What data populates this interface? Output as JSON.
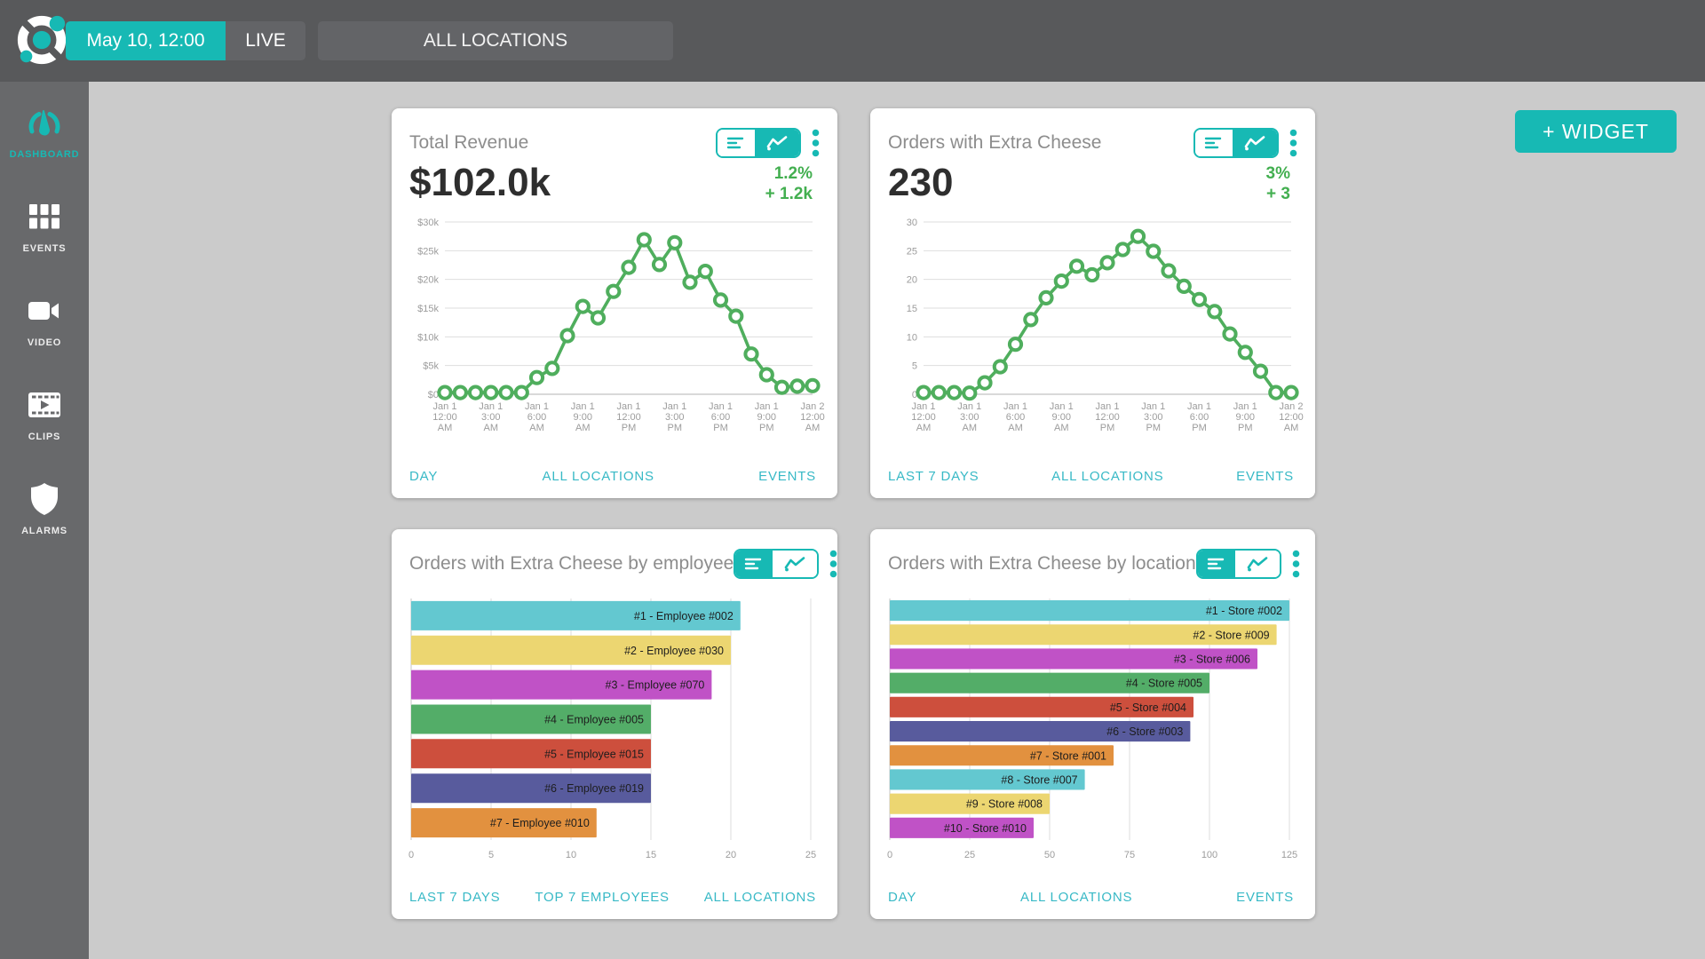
{
  "topbar": {
    "date_button": "May 10, 12:00",
    "live_button": "LIVE",
    "locations_button": "ALL LOCATIONS"
  },
  "sidebar": {
    "items": [
      {
        "label": "DASHBOARD",
        "icon": "gauge-icon",
        "active": true
      },
      {
        "label": "EVENTS",
        "icon": "grid-icon",
        "active": false
      },
      {
        "label": "VIDEO",
        "icon": "video-camera-icon",
        "active": false
      },
      {
        "label": "CLIPS",
        "icon": "film-strip-icon",
        "active": false
      },
      {
        "label": "ALARMS",
        "icon": "shield-icon",
        "active": false
      }
    ]
  },
  "actions": {
    "add_widget_label": "+ WIDGET"
  },
  "widgets": [
    {
      "title": "Total Revenue",
      "value": "$102.0k",
      "percent": "1.2%",
      "delta": "+ 1.2k",
      "view": "chart",
      "footer": [
        "DAY",
        "ALL LOCATIONS",
        "EVENTS"
      ]
    },
    {
      "title": "Orders with Extra Cheese",
      "value": "230",
      "percent": "3%",
      "delta": "+ 3",
      "view": "chart",
      "footer": [
        "LAST 7 DAYS",
        "ALL LOCATIONS",
        "EVENTS"
      ]
    },
    {
      "title": "Orders with Extra Cheese by employee",
      "view": "list",
      "footer": [
        "LAST 7 DAYS",
        "TOP 7 EMPLOYEES",
        "ALL LOCATIONS"
      ]
    },
    {
      "title": "Orders with Extra Cheese by location",
      "view": "list",
      "footer": [
        "DAY",
        "ALL LOCATIONS",
        "EVENTS"
      ]
    }
  ],
  "chart_data": [
    {
      "type": "line",
      "title": "Total Revenue",
      "grid": true,
      "ymax": 30,
      "y_tick_labels": [
        "$30k",
        "$25k",
        "$20k",
        "$15k",
        "$10k",
        "$5k",
        "$0"
      ],
      "x_tick_labels": [
        [
          "Jan 1",
          "12:00",
          "AM"
        ],
        [
          "Jan 1",
          "3:00",
          "AM"
        ],
        [
          "Jan 1",
          "6:00",
          "AM"
        ],
        [
          "Jan 1",
          "9:00",
          "AM"
        ],
        [
          "Jan 1",
          "12:00",
          "PM"
        ],
        [
          "Jan 1",
          "3:00",
          "PM"
        ],
        [
          "Jan 1",
          "6:00",
          "PM"
        ],
        [
          "Jan 1",
          "9:00",
          "PM"
        ],
        [
          "Jan 2",
          "12:00",
          "AM"
        ]
      ],
      "values": [
        0.3,
        0.3,
        0.3,
        0.3,
        0.3,
        0.3,
        2.9,
        4.5,
        10.2,
        15.3,
        13.3,
        17.9,
        22.1,
        26.9,
        22.6,
        26.4,
        19.5,
        21.4,
        16.4,
        13.6,
        7,
        3.4,
        1.2,
        1.4,
        1.5
      ]
    },
    {
      "type": "line",
      "title": "Orders with Extra Cheese",
      "grid": true,
      "ymax": 30,
      "y_tick_labels": [
        "30",
        "25",
        "20",
        "15",
        "10",
        "5",
        "0"
      ],
      "x_tick_labels": [
        [
          "Jan 1",
          "12:00",
          "AM"
        ],
        [
          "Jan 1",
          "3:00",
          "AM"
        ],
        [
          "Jan 1",
          "6:00",
          "AM"
        ],
        [
          "Jan 1",
          "9:00",
          "AM"
        ],
        [
          "Jan 1",
          "12:00",
          "PM"
        ],
        [
          "Jan 1",
          "3:00",
          "PM"
        ],
        [
          "Jan 1",
          "6:00",
          "PM"
        ],
        [
          "Jan 1",
          "9:00",
          "PM"
        ],
        [
          "Jan 2",
          "12:00",
          "AM"
        ]
      ],
      "values": [
        0.3,
        0.3,
        0.3,
        0.2,
        2,
        4.8,
        8.7,
        13,
        16.8,
        19.7,
        22.3,
        20.8,
        22.9,
        25.2,
        27.5,
        24.9,
        21.5,
        18.8,
        16.5,
        14.4,
        10.5,
        7.3,
        4,
        0.3,
        0.3
      ]
    },
    {
      "type": "bar",
      "orientation": "horizontal",
      "title": "Orders with Extra Cheese by employee",
      "grid": true,
      "xmax": 25,
      "xticks": [
        0,
        5,
        10,
        15,
        20,
        25
      ],
      "categories": [
        "#1 - Employee #002",
        "#2 - Employee #030",
        "#3 - Employee #070",
        "#4 - Employee #005",
        "#5 - Employee #015",
        "#6 - Employee #019",
        "#7 - Employee #010"
      ],
      "values": [
        20.6,
        20,
        18.8,
        15,
        15,
        15,
        11.6
      ],
      "colors": [
        "#63c8d0",
        "#ecd671",
        "#c052c6",
        "#53ad68",
        "#cd4f3d",
        "#585b9d",
        "#e2913f"
      ]
    },
    {
      "type": "bar",
      "orientation": "horizontal",
      "title": "Orders with Extra Cheese by location",
      "grid": true,
      "xmax": 125,
      "xticks": [
        0,
        25,
        50,
        75,
        100,
        125
      ],
      "categories": [
        "#1 - Store #002",
        "#2 - Store #009",
        "#3 - Store #006",
        "#4 - Store #005",
        "#5 - Store #004",
        "#6 - Store #003",
        "#7 - Store #001",
        "#8 - Store #007",
        "#9 - Store #008",
        "#10 - Store #010"
      ],
      "values": [
        125,
        121,
        115,
        100,
        95,
        94,
        70,
        61,
        50,
        45
      ],
      "colors": [
        "#63c8d0",
        "#ecd671",
        "#c052c6",
        "#53ad68",
        "#cd4f3d",
        "#585b9d",
        "#e2913f",
        "#63c8d0",
        "#ecd671",
        "#c052c6"
      ]
    }
  ],
  "colors": {
    "accent_teal": "#17b9b4",
    "link_teal": "#38b9c6",
    "chart_green": "#4fae5d",
    "topbar_gray": "#58595b",
    "sidebar_gray": "#68696b",
    "background_gray": "#cbcbcb"
  }
}
